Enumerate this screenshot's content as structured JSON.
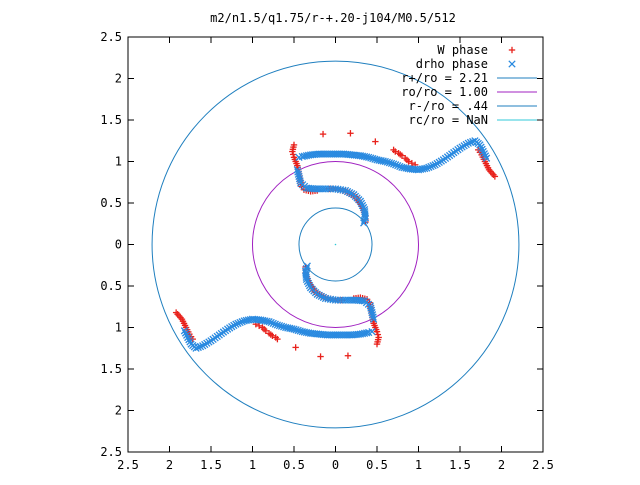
{
  "chart_data": {
    "type": "scatter",
    "title": "m2/n1.5/q1.75/r-+.20-j104/M0.5/512",
    "xlabel": "",
    "ylabel": "",
    "xlim": [
      -2.5,
      2.5
    ],
    "ylim": [
      -2.5,
      2.5
    ],
    "x_ticks": [
      {
        "v": -2.5,
        "label": "2.5"
      },
      {
        "v": -2,
        "label": "2"
      },
      {
        "v": -1.5,
        "label": "1.5"
      },
      {
        "v": -1,
        "label": "1"
      },
      {
        "v": -0.5,
        "label": "0.5"
      },
      {
        "v": 0,
        "label": "0"
      },
      {
        "v": 0.5,
        "label": "0.5"
      },
      {
        "v": 1,
        "label": "1"
      },
      {
        "v": 1.5,
        "label": "1.5"
      },
      {
        "v": 2,
        "label": "2"
      },
      {
        "v": 2.5,
        "label": "2.5"
      }
    ],
    "y_ticks": [
      {
        "v": 2.5,
        "label": "2.5"
      },
      {
        "v": 2,
        "label": "2"
      },
      {
        "v": 1.5,
        "label": "1.5"
      },
      {
        "v": 1,
        "label": "1"
      },
      {
        "v": 0.5,
        "label": "0.5"
      },
      {
        "v": 0,
        "label": "0"
      },
      {
        "v": -0.5,
        "label": "0.5"
      },
      {
        "v": -1,
        "label": "1"
      },
      {
        "v": -1.5,
        "label": "1.5"
      },
      {
        "v": -2,
        "label": "2"
      },
      {
        "v": -2.5,
        "label": "2.5"
      }
    ],
    "grid": false,
    "legend_position": "top-right",
    "circles": [
      {
        "name": "r+/ro = 2.21",
        "radius": 2.21,
        "color": "#1f7fbf"
      },
      {
        "name": "ro/ro = 1.00",
        "radius": 1.0,
        "color": "#a020c0"
      },
      {
        "name": "r-/ro = .44",
        "radius": 0.44,
        "color": "#1f7fbf"
      },
      {
        "name": "rc/ro = NaN",
        "radius": null,
        "color": "#30c8d8"
      }
    ],
    "series": [
      {
        "name": "W phase",
        "marker": "plus",
        "color": "#e8221c",
        "points": [
          [
            -0.15,
            1.33
          ],
          [
            0.18,
            1.34
          ],
          [
            0.48,
            1.24
          ],
          [
            0.7,
            1.14
          ],
          [
            0.72,
            1.12
          ],
          [
            0.76,
            1.1
          ],
          [
            0.8,
            1.07
          ],
          [
            0.84,
            1.04
          ],
          [
            0.88,
            1.0
          ],
          [
            0.92,
            0.98
          ],
          [
            0.96,
            0.96
          ],
          [
            1.72,
            1.14
          ],
          [
            1.76,
            1.08
          ],
          [
            1.8,
            1.0
          ],
          [
            1.85,
            0.9
          ],
          [
            1.92,
            0.82
          ],
          [
            -0.5,
            1.2
          ],
          [
            -0.52,
            1.12
          ],
          [
            -0.5,
            1.05
          ],
          [
            -0.48,
            1.0
          ],
          [
            -0.46,
            0.95
          ],
          [
            -0.45,
            0.9
          ],
          [
            -0.44,
            0.85
          ],
          [
            -0.43,
            0.8
          ],
          [
            -0.42,
            0.75
          ],
          [
            -0.41,
            0.7
          ],
          [
            -0.38,
            0.66
          ],
          [
            -0.3,
            0.64
          ],
          [
            -0.22,
            0.65
          ],
          [
            0.15,
            -1.34
          ],
          [
            -0.18,
            -1.35
          ],
          [
            -0.48,
            -1.24
          ],
          [
            -0.7,
            -1.14
          ],
          [
            -0.72,
            -1.12
          ],
          [
            -0.76,
            -1.1
          ],
          [
            -0.8,
            -1.07
          ],
          [
            -0.84,
            -1.04
          ],
          [
            -0.88,
            -1.0
          ],
          [
            -0.92,
            -0.98
          ],
          [
            -0.96,
            -0.96
          ],
          [
            -1.72,
            -1.14
          ],
          [
            -1.76,
            -1.08
          ],
          [
            -1.8,
            -1.0
          ],
          [
            -1.85,
            -0.9
          ],
          [
            -1.92,
            -0.82
          ],
          [
            0.5,
            -1.2
          ],
          [
            0.52,
            -1.12
          ],
          [
            0.5,
            -1.05
          ],
          [
            0.48,
            -1.0
          ],
          [
            0.46,
            -0.95
          ],
          [
            0.45,
            -0.9
          ],
          [
            0.44,
            -0.85
          ],
          [
            0.43,
            -0.8
          ],
          [
            0.42,
            -0.75
          ],
          [
            0.41,
            -0.7
          ],
          [
            0.38,
            -0.66
          ],
          [
            0.3,
            -0.64
          ],
          [
            0.22,
            -0.65
          ],
          [
            -0.08,
            0.67
          ],
          [
            0.0,
            0.67
          ],
          [
            0.12,
            0.64
          ],
          [
            0.25,
            0.57
          ],
          [
            0.32,
            0.46
          ],
          [
            0.36,
            0.34
          ],
          [
            0.36,
            0.27
          ],
          [
            0.08,
            -0.67
          ],
          [
            0.0,
            -0.67
          ],
          [
            -0.12,
            -0.64
          ],
          [
            -0.25,
            -0.57
          ],
          [
            -0.32,
            -0.46
          ],
          [
            -0.36,
            -0.34
          ],
          [
            -0.36,
            -0.27
          ]
        ]
      },
      {
        "name": "drho phase",
        "marker": "cross",
        "color": "#2a8ae0",
        "points": [
          [
            -0.44,
            1.05
          ],
          [
            -0.4,
            1.06
          ],
          [
            -0.3,
            1.08
          ],
          [
            -0.2,
            1.09
          ],
          [
            -0.1,
            1.09
          ],
          [
            0.0,
            1.09
          ],
          [
            0.1,
            1.09
          ],
          [
            0.2,
            1.08
          ],
          [
            0.3,
            1.07
          ],
          [
            0.4,
            1.05
          ],
          [
            0.5,
            1.02
          ],
          [
            0.6,
            1.0
          ],
          [
            0.7,
            0.97
          ],
          [
            0.8,
            0.93
          ],
          [
            0.9,
            0.91
          ],
          [
            1.0,
            0.9
          ],
          [
            1.1,
            0.92
          ],
          [
            1.2,
            0.96
          ],
          [
            1.3,
            1.02
          ],
          [
            1.4,
            1.09
          ],
          [
            1.5,
            1.16
          ],
          [
            1.6,
            1.22
          ],
          [
            1.68,
            1.25
          ],
          [
            1.74,
            1.2
          ],
          [
            1.78,
            1.12
          ],
          [
            1.82,
            1.04
          ],
          [
            -0.46,
            0.9
          ],
          [
            -0.44,
            0.82
          ],
          [
            -0.42,
            0.74
          ],
          [
            -0.35,
            0.68
          ],
          [
            -0.25,
            0.67
          ],
          [
            -0.12,
            0.67
          ],
          [
            0.0,
            0.67
          ],
          [
            0.12,
            0.65
          ],
          [
            0.22,
            0.6
          ],
          [
            0.3,
            0.52
          ],
          [
            0.35,
            0.42
          ],
          [
            0.36,
            0.32
          ],
          [
            0.34,
            0.26
          ],
          [
            0.44,
            -1.05
          ],
          [
            0.4,
            -1.06
          ],
          [
            0.3,
            -1.08
          ],
          [
            0.2,
            -1.09
          ],
          [
            0.1,
            -1.09
          ],
          [
            0.0,
            -1.09
          ],
          [
            -0.1,
            -1.09
          ],
          [
            -0.2,
            -1.08
          ],
          [
            -0.3,
            -1.07
          ],
          [
            -0.4,
            -1.05
          ],
          [
            -0.5,
            -1.02
          ],
          [
            -0.6,
            -1.0
          ],
          [
            -0.7,
            -0.97
          ],
          [
            -0.8,
            -0.93
          ],
          [
            -0.9,
            -0.91
          ],
          [
            -1.0,
            -0.9
          ],
          [
            -1.1,
            -0.92
          ],
          [
            -1.2,
            -0.96
          ],
          [
            -1.3,
            -1.02
          ],
          [
            -1.4,
            -1.09
          ],
          [
            -1.5,
            -1.16
          ],
          [
            -1.6,
            -1.22
          ],
          [
            -1.68,
            -1.25
          ],
          [
            -1.74,
            -1.2
          ],
          [
            -1.78,
            -1.12
          ],
          [
            -1.82,
            -1.04
          ],
          [
            0.46,
            -0.9
          ],
          [
            0.44,
            -0.82
          ],
          [
            0.42,
            -0.74
          ],
          [
            0.35,
            -0.68
          ],
          [
            0.25,
            -0.67
          ],
          [
            0.12,
            -0.67
          ],
          [
            0.0,
            -0.67
          ],
          [
            -0.12,
            -0.65
          ],
          [
            -0.22,
            -0.6
          ],
          [
            -0.3,
            -0.52
          ],
          [
            -0.35,
            -0.42
          ],
          [
            -0.36,
            -0.32
          ],
          [
            -0.34,
            -0.26
          ]
        ]
      }
    ]
  }
}
